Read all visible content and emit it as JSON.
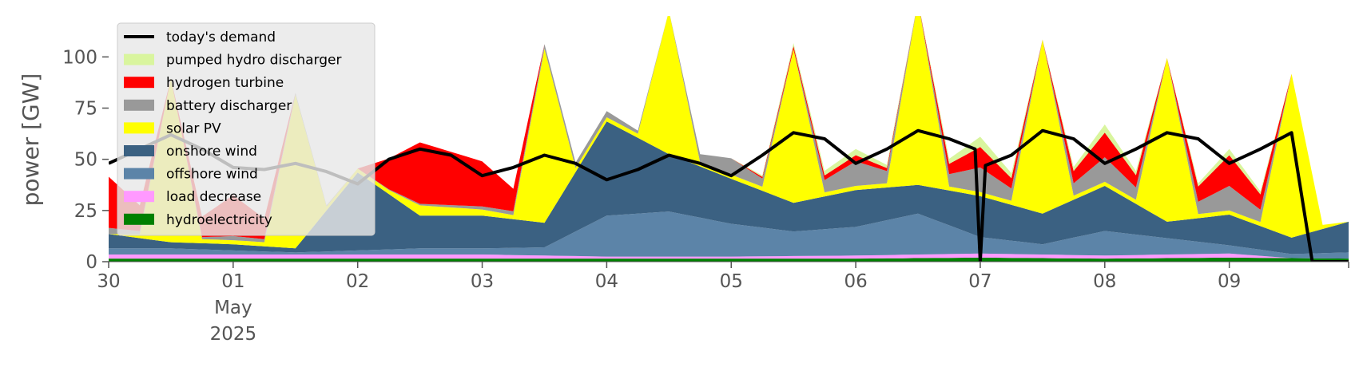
{
  "chart_data": {
    "type": "area",
    "stacked": true,
    "ylabel": "power [GW]",
    "ylim": [
      0,
      120
    ],
    "yticks": [
      0,
      25,
      50,
      75,
      100
    ],
    "xlim": [
      "2025-04-30T00:00",
      "2025-05-09T23:00"
    ],
    "xticks": [
      {
        "x": "2025-04-30T00:00",
        "label": "30"
      },
      {
        "x": "2025-05-01T00:00",
        "label": "01",
        "sublabels": [
          "May",
          "2025"
        ]
      },
      {
        "x": "2025-05-02T00:00",
        "label": "02"
      },
      {
        "x": "2025-05-03T00:00",
        "label": "03"
      },
      {
        "x": "2025-05-04T00:00",
        "label": "04"
      },
      {
        "x": "2025-05-05T00:00",
        "label": "05"
      },
      {
        "x": "2025-05-06T00:00",
        "label": "06"
      },
      {
        "x": "2025-05-07T00:00",
        "label": "07"
      },
      {
        "x": "2025-05-08T00:00",
        "label": "08"
      },
      {
        "x": "2025-05-09T00:00",
        "label": "09"
      }
    ],
    "grid": false,
    "legend_placement": "upper-left",
    "legend": [
      {
        "name": "today's demand",
        "kind": "line",
        "color": "#000000"
      },
      {
        "name": "pumped hydro discharger",
        "kind": "patch",
        "color": "#d9f59e"
      },
      {
        "name": "hydrogen turbine",
        "kind": "patch",
        "color": "#ff0000"
      },
      {
        "name": "battery discharger",
        "kind": "patch",
        "color": "#999999"
      },
      {
        "name": "solar PV",
        "kind": "patch",
        "color": "#ffff00"
      },
      {
        "name": "onshore wind",
        "kind": "patch",
        "color": "#3b6182"
      },
      {
        "name": "offshore wind",
        "kind": "patch",
        "color": "#5c84a8"
      },
      {
        "name": "load decrease",
        "kind": "patch",
        "color": "#ff99ff"
      },
      {
        "name": "hydroelectricity",
        "kind": "patch",
        "color": "#008000"
      }
    ],
    "series": [
      {
        "name": "hydroelectricity",
        "color": "#008000",
        "points": [
          [
            "2025-04-30T00:00",
            1.5
          ],
          [
            "2025-05-02T00:00",
            1.5
          ],
          [
            "2025-05-04T00:00",
            1.5
          ],
          [
            "2025-05-06T00:00",
            1.5
          ],
          [
            "2025-05-07T00:00",
            2
          ],
          [
            "2025-05-08T00:00",
            1.5
          ],
          [
            "2025-05-09T00:00",
            2
          ],
          [
            "2025-05-09T23:00",
            1.5
          ]
        ]
      },
      {
        "name": "load decrease",
        "color": "#ff99ff",
        "points": [
          [
            "2025-04-30T00:00",
            2
          ],
          [
            "2025-05-01T00:00",
            2
          ],
          [
            "2025-05-02T00:00",
            2
          ],
          [
            "2025-05-03T00:00",
            2
          ],
          [
            "2025-05-04T00:00",
            1
          ],
          [
            "2025-05-05T00:00",
            1
          ],
          [
            "2025-05-06T00:00",
            1.5
          ],
          [
            "2025-05-07T00:00",
            2
          ],
          [
            "2025-05-08T00:00",
            1.5
          ],
          [
            "2025-05-09T00:00",
            2
          ],
          [
            "2025-05-09T12:00",
            0
          ],
          [
            "2025-05-09T23:00",
            0
          ]
        ]
      },
      {
        "name": "offshore wind",
        "color": "#5c84a8",
        "points": [
          [
            "2025-04-30T00:00",
            3
          ],
          [
            "2025-04-30T12:00",
            3
          ],
          [
            "2025-05-01T00:00",
            2
          ],
          [
            "2025-05-01T12:00",
            1
          ],
          [
            "2025-05-02T00:00",
            2
          ],
          [
            "2025-05-02T12:00",
            3
          ],
          [
            "2025-05-03T00:00",
            3
          ],
          [
            "2025-05-03T12:00",
            4
          ],
          [
            "2025-05-04T00:00",
            20
          ],
          [
            "2025-05-04T12:00",
            22
          ],
          [
            "2025-05-05T00:00",
            16
          ],
          [
            "2025-05-05T12:00",
            12
          ],
          [
            "2025-05-06T00:00",
            14
          ],
          [
            "2025-05-06T12:00",
            20
          ],
          [
            "2025-05-07T00:00",
            8
          ],
          [
            "2025-05-07T12:00",
            5
          ],
          [
            "2025-05-08T00:00",
            12
          ],
          [
            "2025-05-08T12:00",
            8
          ],
          [
            "2025-05-09T00:00",
            4
          ],
          [
            "2025-05-09T12:00",
            2
          ],
          [
            "2025-05-09T23:00",
            3
          ]
        ]
      },
      {
        "name": "onshore wind",
        "color": "#3b6182",
        "points": [
          [
            "2025-04-30T00:00",
            7
          ],
          [
            "2025-04-30T12:00",
            3
          ],
          [
            "2025-05-01T00:00",
            3
          ],
          [
            "2025-05-01T12:00",
            2
          ],
          [
            "2025-05-02T00:00",
            38
          ],
          [
            "2025-05-02T12:00",
            16
          ],
          [
            "2025-05-03T00:00",
            16
          ],
          [
            "2025-05-03T12:00",
            12
          ],
          [
            "2025-05-04T00:00",
            46
          ],
          [
            "2025-05-04T12:00",
            28
          ],
          [
            "2025-05-05T00:00",
            22
          ],
          [
            "2025-05-05T12:00",
            14
          ],
          [
            "2025-05-06T00:00",
            18
          ],
          [
            "2025-05-06T12:00",
            14
          ],
          [
            "2025-05-07T00:00",
            20
          ],
          [
            "2025-05-07T12:00",
            15
          ],
          [
            "2025-05-08T00:00",
            22
          ],
          [
            "2025-05-08T12:00",
            8
          ],
          [
            "2025-05-09T00:00",
            15
          ],
          [
            "2025-05-09T12:00",
            8
          ],
          [
            "2025-05-09T23:00",
            15
          ]
        ]
      },
      {
        "name": "solar PV",
        "color": "#ffff00",
        "points": [
          [
            "2025-04-30T00:00",
            0
          ],
          [
            "2025-04-30T06:00",
            2
          ],
          [
            "2025-04-30T12:00",
            80
          ],
          [
            "2025-04-30T18:00",
            2
          ],
          [
            "2025-05-01T06:00",
            2
          ],
          [
            "2025-05-01T12:00",
            75
          ],
          [
            "2025-05-01T18:00",
            2
          ],
          [
            "2025-05-02T06:00",
            2
          ],
          [
            "2025-05-02T12:00",
            5
          ],
          [
            "2025-05-03T06:00",
            2
          ],
          [
            "2025-05-03T12:00",
            85
          ],
          [
            "2025-05-03T18:00",
            2
          ],
          [
            "2025-05-04T06:00",
            2
          ],
          [
            "2025-05-04T12:00",
            70
          ],
          [
            "2025-05-04T18:00",
            2
          ],
          [
            "2025-05-05T06:00",
            2
          ],
          [
            "2025-05-05T12:00",
            75
          ],
          [
            "2025-05-05T18:00",
            2
          ],
          [
            "2025-05-06T06:00",
            2
          ],
          [
            "2025-05-06T12:00",
            90
          ],
          [
            "2025-05-06T18:00",
            2
          ],
          [
            "2025-05-07T06:00",
            2
          ],
          [
            "2025-05-07T12:00",
            85
          ],
          [
            "2025-05-07T18:00",
            2
          ],
          [
            "2025-05-08T06:00",
            2
          ],
          [
            "2025-05-08T12:00",
            80
          ],
          [
            "2025-05-08T18:00",
            2
          ],
          [
            "2025-05-09T06:00",
            2
          ],
          [
            "2025-05-09T12:00",
            80
          ],
          [
            "2025-05-09T18:00",
            2
          ],
          [
            "2025-05-09T23:00",
            0
          ]
        ]
      },
      {
        "name": "battery discharger",
        "color": "#999999",
        "points": [
          [
            "2025-04-30T00:00",
            3
          ],
          [
            "2025-04-30T12:00",
            0
          ],
          [
            "2025-05-01T00:00",
            2
          ],
          [
            "2025-05-02T00:00",
            0
          ],
          [
            "2025-05-04T00:00",
            3
          ],
          [
            "2025-05-04T12:00",
            0
          ],
          [
            "2025-05-05T00:00",
            8
          ],
          [
            "2025-05-05T12:00",
            0
          ],
          [
            "2025-05-06T00:00",
            12
          ],
          [
            "2025-05-06T12:00",
            0
          ],
          [
            "2025-05-07T00:00",
            12
          ],
          [
            "2025-05-07T12:00",
            0
          ],
          [
            "2025-05-08T00:00",
            12
          ],
          [
            "2025-05-08T12:00",
            0
          ],
          [
            "2025-05-09T00:00",
            12
          ],
          [
            "2025-05-09T12:00",
            0
          ],
          [
            "2025-05-09T23:00",
            0
          ]
        ]
      },
      {
        "name": "hydrogen turbine",
        "color": "#ff0000",
        "points": [
          [
            "2025-04-30T00:00",
            25
          ],
          [
            "2025-04-30T12:00",
            0
          ],
          [
            "2025-05-01T00:00",
            20
          ],
          [
            "2025-05-01T12:00",
            0
          ],
          [
            "2025-05-02T00:00",
            0
          ],
          [
            "2025-05-02T12:00",
            30
          ],
          [
            "2025-05-03T00:00",
            22
          ],
          [
            "2025-05-03T12:00",
            0
          ],
          [
            "2025-05-04T00:00",
            0
          ],
          [
            "2025-05-05T00:00",
            0
          ],
          [
            "2025-05-06T00:00",
            3
          ],
          [
            "2025-05-06T12:00",
            0
          ],
          [
            "2025-05-07T00:00",
            10
          ],
          [
            "2025-05-07T12:00",
            0
          ],
          [
            "2025-05-08T00:00",
            12
          ],
          [
            "2025-05-08T12:00",
            0
          ],
          [
            "2025-05-09T00:00",
            15
          ],
          [
            "2025-05-09T12:00",
            0
          ],
          [
            "2025-05-09T23:00",
            0
          ]
        ]
      },
      {
        "name": "pumped hydro discharger",
        "color": "#d9f59e",
        "points": [
          [
            "2025-04-30T00:00",
            0
          ],
          [
            "2025-05-05T00:00",
            0
          ],
          [
            "2025-05-06T00:00",
            3
          ],
          [
            "2025-05-06T12:00",
            0
          ],
          [
            "2025-05-07T00:00",
            5
          ],
          [
            "2025-05-07T12:00",
            0
          ],
          [
            "2025-05-08T00:00",
            4
          ],
          [
            "2025-05-08T12:00",
            0
          ],
          [
            "2025-05-09T00:00",
            3
          ],
          [
            "2025-05-09T12:00",
            0
          ],
          [
            "2025-05-09T23:00",
            0
          ]
        ]
      },
      {
        "name": "today's demand",
        "color": "#000000",
        "kind": "line",
        "points": [
          [
            "2025-04-30T00:00",
            48
          ],
          [
            "2025-04-30T06:00",
            55
          ],
          [
            "2025-04-30T12:00",
            62
          ],
          [
            "2025-04-30T18:00",
            55
          ],
          [
            "2025-05-01T00:00",
            46
          ],
          [
            "2025-05-01T06:00",
            45
          ],
          [
            "2025-05-01T12:00",
            48
          ],
          [
            "2025-05-01T18:00",
            44
          ],
          [
            "2025-05-02T00:00",
            38
          ],
          [
            "2025-05-02T06:00",
            50
          ],
          [
            "2025-05-02T12:00",
            55
          ],
          [
            "2025-05-02T18:00",
            52
          ],
          [
            "2025-05-03T00:00",
            42
          ],
          [
            "2025-05-03T06:00",
            46
          ],
          [
            "2025-05-03T12:00",
            52
          ],
          [
            "2025-05-03T18:00",
            48
          ],
          [
            "2025-05-04T00:00",
            40
          ],
          [
            "2025-05-04T06:00",
            45
          ],
          [
            "2025-05-04T12:00",
            52
          ],
          [
            "2025-05-04T18:00",
            48
          ],
          [
            "2025-05-05T00:00",
            42
          ],
          [
            "2025-05-05T06:00",
            52
          ],
          [
            "2025-05-05T12:00",
            63
          ],
          [
            "2025-05-05T18:00",
            60
          ],
          [
            "2025-05-06T00:00",
            48
          ],
          [
            "2025-05-06T06:00",
            55
          ],
          [
            "2025-05-06T12:00",
            64
          ],
          [
            "2025-05-06T18:00",
            60
          ],
          [
            "2025-05-06T23:00",
            55
          ],
          [
            "2025-05-07T00:00",
            0
          ],
          [
            "2025-05-07T01:00",
            47
          ],
          [
            "2025-05-07T06:00",
            52
          ],
          [
            "2025-05-07T12:00",
            64
          ],
          [
            "2025-05-07T18:00",
            60
          ],
          [
            "2025-05-08T00:00",
            48
          ],
          [
            "2025-05-08T06:00",
            55
          ],
          [
            "2025-05-08T12:00",
            63
          ],
          [
            "2025-05-08T18:00",
            60
          ],
          [
            "2025-05-09T00:00",
            48
          ],
          [
            "2025-05-09T06:00",
            55
          ],
          [
            "2025-05-09T12:00",
            63
          ],
          [
            "2025-05-09T16:00",
            0
          ],
          [
            "2025-05-09T23:00",
            0
          ]
        ]
      }
    ]
  }
}
